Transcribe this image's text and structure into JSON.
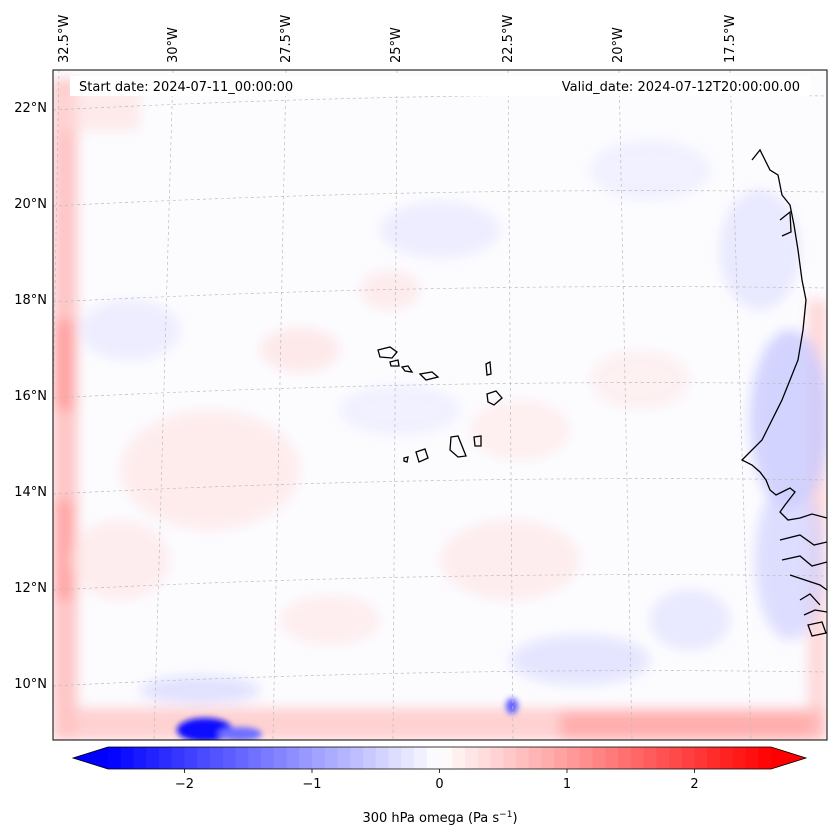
{
  "map": {
    "start_label": "Start date: 2024-07-11_00:00:00",
    "valid_label": "Valid_date: 2024-07-12T20:00:00.00",
    "lon_labels": [
      "32.5°W",
      "30°W",
      "27.5°W",
      "25°W",
      "22.5°W",
      "20°W",
      "17.5°W"
    ],
    "lat_labels": [
      "22°N",
      "20°N",
      "18°N",
      "16°N",
      "14°N",
      "12°N",
      "10°N"
    ],
    "gridline_color": "#bbbbbb",
    "coast_color": "#000000"
  },
  "colorbar": {
    "ticks": [
      "−2",
      "−1",
      "0",
      "1",
      "2"
    ],
    "tick_values": [
      -2,
      -1,
      0,
      1,
      2
    ],
    "range": [
      -2.6,
      2.6
    ],
    "label": "300 hPa omega (Pa s",
    "label_sup": "−1",
    "label_end": ")",
    "neg_color": "#0000ff",
    "zero_color": "#ffffff",
    "pos_color": "#ff0000"
  }
}
